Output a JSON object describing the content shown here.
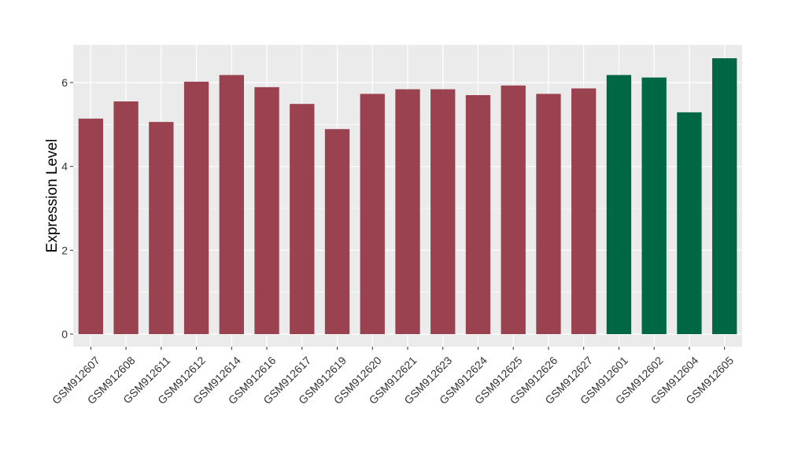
{
  "chart_data": {
    "type": "bar",
    "title": "",
    "xlabel": "",
    "ylabel": "Expression Level",
    "ylim": [
      -0.3,
      6.9
    ],
    "yticks": [
      0,
      2,
      4,
      6
    ],
    "grid": true,
    "legend": "none",
    "categories": [
      "GSM912607",
      "GSM912608",
      "GSM912611",
      "GSM912612",
      "GSM912614",
      "GSM912616",
      "GSM912617",
      "GSM912619",
      "GSM912620",
      "GSM912621",
      "GSM912623",
      "GSM912624",
      "GSM912625",
      "GSM912626",
      "GSM912627",
      "GSM912601",
      "GSM912602",
      "GSM912604",
      "GSM912605"
    ],
    "values": [
      5.14,
      5.55,
      5.06,
      6.02,
      6.18,
      5.89,
      5.49,
      4.89,
      5.73,
      5.84,
      5.84,
      5.7,
      5.93,
      5.73,
      5.86,
      6.18,
      6.12,
      5.29,
      6.58
    ],
    "groups": [
      0,
      0,
      0,
      0,
      0,
      0,
      0,
      0,
      0,
      0,
      0,
      0,
      0,
      0,
      0,
      1,
      1,
      1,
      1
    ],
    "group_colors": [
      "#9b4250",
      "#006744"
    ],
    "background_color": "#ebebeb",
    "grid_color": "#ffffff"
  }
}
